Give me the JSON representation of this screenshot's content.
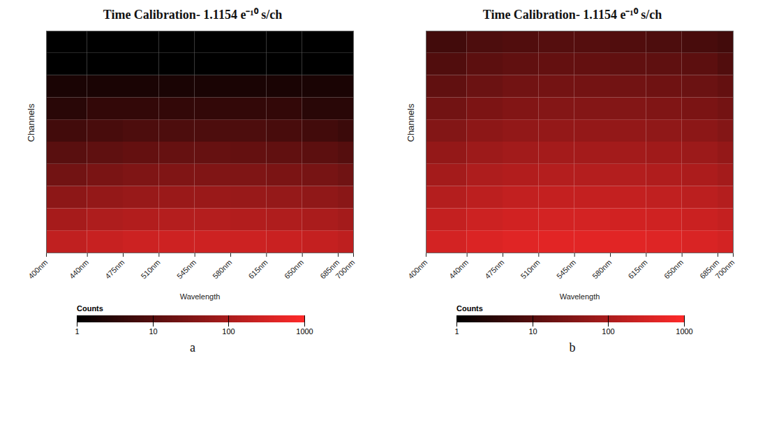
{
  "chart_data": [
    {
      "type": "heatmap",
      "panel_label": "a",
      "title": "Time Calibration- 1.1154 e⁻¹⁰ s/ch",
      "x_label": "Wavelength",
      "y_label": "Channels",
      "xlim": [
        400,
        700
      ],
      "xticks": [
        {
          "value": 400,
          "label": "400nm"
        },
        {
          "value": 440,
          "label": "440nm"
        },
        {
          "value": 475,
          "label": "475nm"
        },
        {
          "value": 510,
          "label": "510nm"
        },
        {
          "value": 545,
          "label": "545nm"
        },
        {
          "value": 580,
          "label": "580nm"
        },
        {
          "value": 615,
          "label": "615nm"
        },
        {
          "value": 650,
          "label": "650nm"
        },
        {
          "value": 685,
          "label": "685nm"
        },
        {
          "value": 700,
          "label": "700nm"
        }
      ],
      "ylim": [
        0,
        1000
      ],
      "tick_labels": "x",
      "x_bins": [
        400,
        440,
        475,
        510,
        545,
        580,
        615,
        650,
        685,
        700
      ],
      "y_bins": [
        0,
        100,
        200,
        300,
        400,
        500,
        600,
        700,
        800,
        900,
        1000
      ],
      "cells": [
        [
          180,
          220,
          250,
          260,
          260,
          250,
          230,
          200,
          170
        ],
        [
          90,
          110,
          125,
          130,
          130,
          125,
          115,
          100,
          85
        ],
        [
          45,
          55,
          62,
          65,
          65,
          62,
          57,
          50,
          42
        ],
        [
          22,
          27,
          31,
          32,
          32,
          31,
          28,
          25,
          21
        ],
        [
          11,
          13,
          15,
          16,
          16,
          15,
          14,
          12,
          10
        ],
        [
          6,
          7,
          8,
          8,
          8,
          8,
          7,
          6,
          5
        ],
        [
          3,
          4,
          4,
          4,
          4,
          4,
          4,
          3,
          3
        ],
        [
          2,
          2,
          2,
          2,
          2,
          2,
          2,
          2,
          2
        ],
        [
          1,
          1,
          1,
          1,
          1,
          1,
          1,
          1,
          1
        ],
        [
          1,
          1,
          1,
          1,
          1,
          1,
          1,
          1,
          1
        ]
      ],
      "colorbar": {
        "label": "Counts",
        "log": true,
        "range": [
          1,
          1000
        ],
        "ticks": [
          1,
          10,
          100,
          1000
        ],
        "colors": [
          "#000000",
          "#ff2a2a"
        ]
      }
    },
    {
      "type": "heatmap",
      "panel_label": "b",
      "title": "Time Calibration- 1.1154 e⁻¹⁰ s/ch",
      "x_label": "Wavelength",
      "y_label": "Channels",
      "xlim": [
        400,
        700
      ],
      "xticks": [
        {
          "value": 400,
          "label": "400nm"
        },
        {
          "value": 440,
          "label": "440nm"
        },
        {
          "value": 475,
          "label": "475nm"
        },
        {
          "value": 510,
          "label": "510nm"
        },
        {
          "value": 545,
          "label": "545nm"
        },
        {
          "value": 580,
          "label": "580nm"
        },
        {
          "value": 615,
          "label": "615nm"
        },
        {
          "value": 650,
          "label": "650nm"
        },
        {
          "value": 685,
          "label": "685nm"
        },
        {
          "value": 700,
          "label": "700nm"
        }
      ],
      "ylim": [
        0,
        1000
      ],
      "tick_labels": "x",
      "x_bins": [
        400,
        440,
        475,
        510,
        545,
        580,
        615,
        650,
        685,
        700
      ],
      "y_bins": [
        0,
        100,
        200,
        300,
        400,
        500,
        600,
        700,
        800,
        900,
        1000
      ],
      "cells": [
        [
          300,
          380,
          430,
          450,
          450,
          440,
          410,
          360,
          300
        ],
        [
          200,
          250,
          285,
          300,
          300,
          290,
          270,
          240,
          200
        ],
        [
          130,
          165,
          190,
          200,
          200,
          195,
          180,
          160,
          130
        ],
        [
          85,
          110,
          125,
          130,
          130,
          128,
          118,
          105,
          85
        ],
        [
          55,
          70,
          80,
          85,
          85,
          83,
          77,
          68,
          55
        ],
        [
          35,
          45,
          52,
          55,
          55,
          54,
          50,
          44,
          36
        ],
        [
          22,
          29,
          34,
          36,
          36,
          35,
          32,
          28,
          23
        ],
        [
          14,
          18,
          22,
          23,
          23,
          22,
          20,
          18,
          15
        ],
        [
          9,
          12,
          14,
          15,
          15,
          14,
          13,
          12,
          9
        ],
        [
          6,
          8,
          9,
          10,
          10,
          9,
          8,
          7,
          6
        ]
      ],
      "colorbar": {
        "label": "Counts",
        "log": true,
        "range": [
          1,
          1000
        ],
        "ticks": [
          1,
          10,
          100,
          1000
        ],
        "colors": [
          "#000000",
          "#ff2a2a"
        ]
      }
    }
  ]
}
